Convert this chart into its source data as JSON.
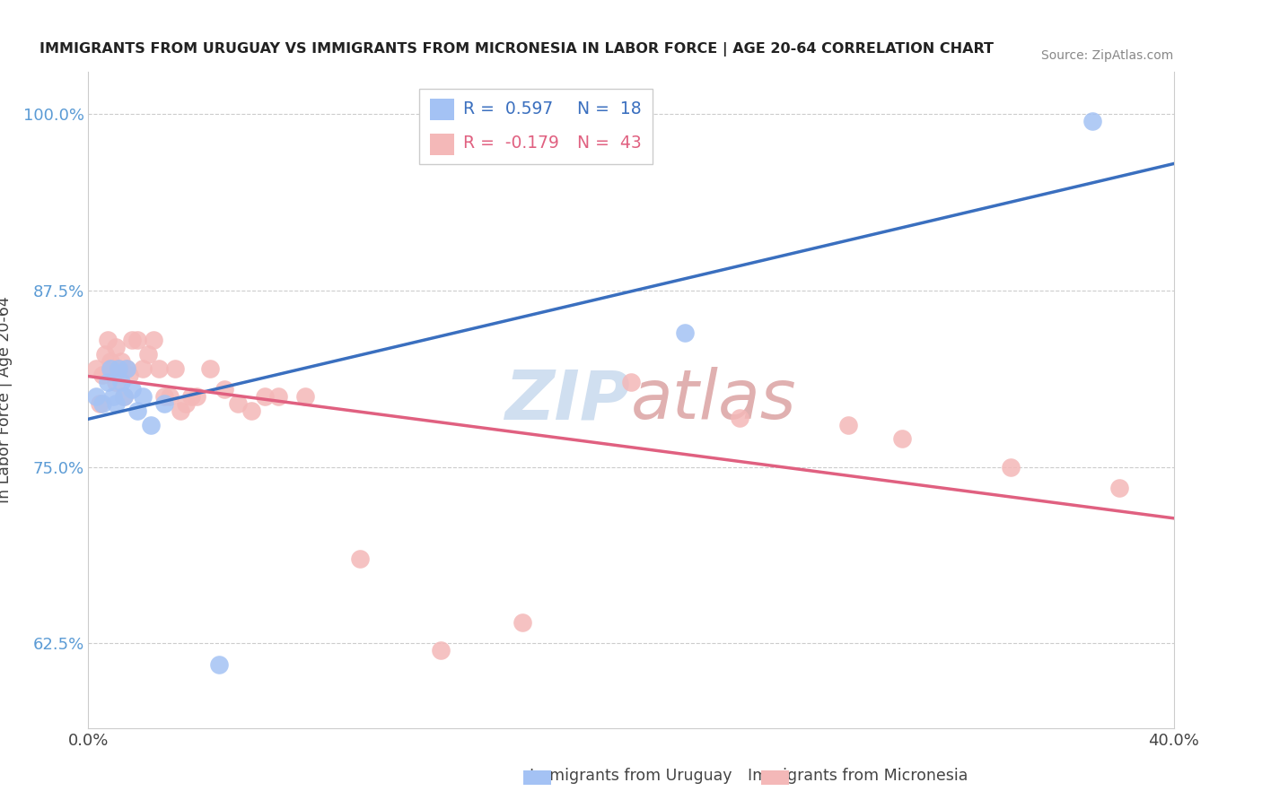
{
  "title": "IMMIGRANTS FROM URUGUAY VS IMMIGRANTS FROM MICRONESIA IN LABOR FORCE | AGE 20-64 CORRELATION CHART",
  "source": "Source: ZipAtlas.com",
  "ylabel": "In Labor Force | Age 20-64",
  "xlim": [
    0.0,
    0.4
  ],
  "ylim": [
    0.565,
    1.03
  ],
  "xticks": [
    0.0,
    0.1,
    0.2,
    0.3,
    0.4
  ],
  "xticklabels": [
    "0.0%",
    "",
    "",
    "",
    "40.0%"
  ],
  "yticks": [
    0.625,
    0.75,
    0.875,
    1.0
  ],
  "yticklabels": [
    "62.5%",
    "75.0%",
    "87.5%",
    "100.0%"
  ],
  "uruguay_color": "#a4c2f4",
  "micronesia_color": "#f4b8b8",
  "uruguay_line_color": "#3a6fbf",
  "micronesia_line_color": "#e06080",
  "R_uruguay": 0.597,
  "N_uruguay": 18,
  "R_micronesia": -0.179,
  "N_micronesia": 43,
  "uruguay_x": [
    0.003,
    0.005,
    0.007,
    0.008,
    0.009,
    0.01,
    0.011,
    0.012,
    0.013,
    0.014,
    0.016,
    0.018,
    0.02,
    0.023,
    0.028,
    0.048,
    0.22,
    0.37
  ],
  "uruguay_y": [
    0.8,
    0.795,
    0.81,
    0.82,
    0.8,
    0.795,
    0.82,
    0.81,
    0.8,
    0.82,
    0.805,
    0.79,
    0.8,
    0.78,
    0.795,
    0.61,
    0.845,
    0.995
  ],
  "micronesia_x": [
    0.003,
    0.004,
    0.005,
    0.006,
    0.007,
    0.008,
    0.009,
    0.01,
    0.01,
    0.011,
    0.012,
    0.013,
    0.014,
    0.015,
    0.016,
    0.018,
    0.02,
    0.022,
    0.024,
    0.026,
    0.028,
    0.03,
    0.032,
    0.034,
    0.036,
    0.038,
    0.04,
    0.045,
    0.05,
    0.055,
    0.06,
    0.065,
    0.07,
    0.08,
    0.1,
    0.13,
    0.16,
    0.2,
    0.24,
    0.28,
    0.3,
    0.34,
    0.38
  ],
  "micronesia_y": [
    0.82,
    0.795,
    0.815,
    0.83,
    0.84,
    0.825,
    0.82,
    0.835,
    0.81,
    0.82,
    0.825,
    0.8,
    0.82,
    0.815,
    0.84,
    0.84,
    0.82,
    0.83,
    0.84,
    0.82,
    0.8,
    0.8,
    0.82,
    0.79,
    0.795,
    0.8,
    0.8,
    0.82,
    0.805,
    0.795,
    0.79,
    0.8,
    0.8,
    0.8,
    0.685,
    0.62,
    0.64,
    0.81,
    0.785,
    0.78,
    0.77,
    0.75,
    0.735
  ],
  "watermark_text": "ZIPatlas",
  "watermark_fontsize": 55,
  "watermark_color": "#d0dff0",
  "watermark_color2": "#e0b0b0"
}
